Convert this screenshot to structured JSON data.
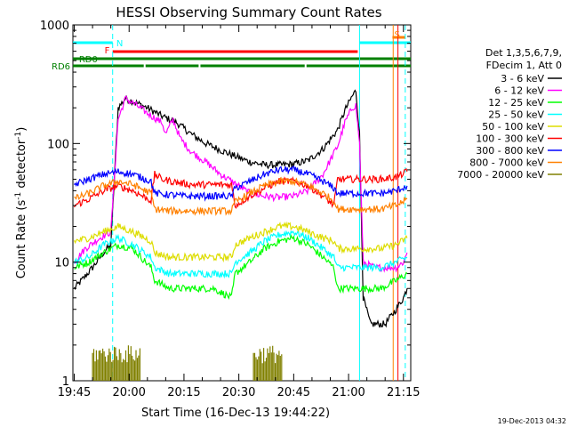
{
  "chart_data": {
    "type": "line",
    "title": "HESSI Observing Summary Count Rates",
    "ylabel": "Count Rate (s",
    "ylabel_sup": "-1",
    "ylabel_rest": " detector",
    "ylabel_sup2": "-1",
    "ylabel_end": ")",
    "xlabel": "Start Time (16-Dec-13 19:44:22)",
    "yscale": "log",
    "ylim": [
      1,
      1000
    ],
    "xlim_minutes": [
      -0.37,
      92.0
    ],
    "xticks": [
      {
        "label": "19:45",
        "m": 0
      },
      {
        "label": "20:00",
        "m": 15
      },
      {
        "label": "20:15",
        "m": 30
      },
      {
        "label": "20:30",
        "m": 45
      },
      {
        "label": "20:45",
        "m": 60
      },
      {
        "label": "21:00",
        "m": 75
      },
      {
        "label": "21:15",
        "m": 90
      }
    ],
    "yticks": [
      {
        "label": "1",
        "v": 1
      },
      {
        "label": "10",
        "v": 10
      },
      {
        "label": "100",
        "v": 100
      },
      {
        "label": "1000",
        "v": 1000
      }
    ],
    "legend": {
      "header": [
        "Det 1,3,5,6,7,9,",
        "FDecim 1, Att 0"
      ],
      "placement": "right"
    },
    "series": [
      {
        "name": "3 - 6 keV",
        "color": "#000000",
        "points": [
          [
            0,
            6
          ],
          [
            2,
            7
          ],
          [
            5,
            9
          ],
          [
            8,
            12
          ],
          [
            10,
            14
          ],
          [
            12,
            200
          ],
          [
            14,
            240
          ],
          [
            17,
            220
          ],
          [
            20,
            200
          ],
          [
            24,
            170
          ],
          [
            28,
            150
          ],
          [
            32,
            120
          ],
          [
            36,
            100
          ],
          [
            40,
            88
          ],
          [
            44,
            78
          ],
          [
            48,
            70
          ],
          [
            52,
            66
          ],
          [
            56,
            66
          ],
          [
            60,
            67
          ],
          [
            64,
            72
          ],
          [
            68,
            90
          ],
          [
            72,
            130
          ],
          [
            74,
            190
          ],
          [
            76,
            250
          ],
          [
            77,
            280
          ],
          [
            78,
            120
          ],
          [
            79,
            5
          ],
          [
            81,
            3
          ],
          [
            83,
            3
          ],
          [
            85,
            3
          ],
          [
            88,
            4
          ],
          [
            90,
            5
          ],
          [
            91,
            6
          ]
        ]
      },
      {
        "name": "6 - 12 keV",
        "color": "#ff00ff",
        "points": [
          [
            0,
            10
          ],
          [
            3,
            13
          ],
          [
            7,
            16
          ],
          [
            10,
            18
          ],
          [
            12,
            160
          ],
          [
            14,
            240
          ],
          [
            17,
            210
          ],
          [
            20,
            180
          ],
          [
            24,
            150
          ],
          [
            25,
            120
          ],
          [
            27,
            160
          ],
          [
            29,
            110
          ],
          [
            32,
            85
          ],
          [
            36,
            70
          ],
          [
            40,
            55
          ],
          [
            44,
            46
          ],
          [
            48,
            38
          ],
          [
            52,
            36
          ],
          [
            56,
            35
          ],
          [
            60,
            36
          ],
          [
            64,
            40
          ],
          [
            68,
            55
          ],
          [
            72,
            95
          ],
          [
            74,
            150
          ],
          [
            76,
            200
          ],
          [
            77,
            210
          ],
          [
            78,
            100
          ],
          [
            79,
            10
          ],
          [
            82,
            9
          ],
          [
            85,
            9
          ],
          [
            88,
            9
          ],
          [
            90,
            10
          ],
          [
            91,
            12
          ]
        ]
      },
      {
        "name": "12 - 25 keV",
        "color": "#00ff00",
        "points": [
          [
            0,
            9
          ],
          [
            4,
            10
          ],
          [
            8,
            12
          ],
          [
            12,
            14
          ],
          [
            16,
            13
          ],
          [
            21,
            9
          ],
          [
            22,
            7
          ],
          [
            26,
            6
          ],
          [
            30,
            6
          ],
          [
            34,
            6
          ],
          [
            38,
            6
          ],
          [
            43,
            5
          ],
          [
            44,
            8
          ],
          [
            48,
            10
          ],
          [
            52,
            13
          ],
          [
            56,
            15
          ],
          [
            60,
            16
          ],
          [
            64,
            14
          ],
          [
            68,
            11
          ],
          [
            71,
            9
          ],
          [
            72,
            6
          ],
          [
            76,
            6
          ],
          [
            80,
            6
          ],
          [
            84,
            6
          ],
          [
            88,
            7
          ],
          [
            91,
            8
          ]
        ]
      },
      {
        "name": "25 - 50 keV",
        "color": "#00ffff",
        "points": [
          [
            0,
            10
          ],
          [
            4,
            11
          ],
          [
            8,
            14
          ],
          [
            12,
            16
          ],
          [
            16,
            14
          ],
          [
            21,
            11
          ],
          [
            22,
            9
          ],
          [
            26,
            8
          ],
          [
            30,
            8
          ],
          [
            34,
            8
          ],
          [
            38,
            8
          ],
          [
            43,
            8
          ],
          [
            44,
            10
          ],
          [
            48,
            12
          ],
          [
            52,
            15
          ],
          [
            56,
            17
          ],
          [
            60,
            18
          ],
          [
            64,
            16
          ],
          [
            68,
            13
          ],
          [
            71,
            11
          ],
          [
            72,
            9
          ],
          [
            76,
            9
          ],
          [
            80,
            9
          ],
          [
            84,
            9
          ],
          [
            88,
            10
          ],
          [
            91,
            11
          ]
        ]
      },
      {
        "name": "50 - 100 keV",
        "color": "#dddd00",
        "points": [
          [
            0,
            15
          ],
          [
            4,
            16
          ],
          [
            8,
            18
          ],
          [
            12,
            20
          ],
          [
            16,
            18
          ],
          [
            21,
            15
          ],
          [
            22,
            12
          ],
          [
            26,
            11
          ],
          [
            30,
            11
          ],
          [
            34,
            11
          ],
          [
            38,
            11
          ],
          [
            43,
            11
          ],
          [
            44,
            14
          ],
          [
            48,
            16
          ],
          [
            52,
            18
          ],
          [
            56,
            20
          ],
          [
            60,
            20
          ],
          [
            64,
            18
          ],
          [
            68,
            16
          ],
          [
            71,
            15
          ],
          [
            72,
            13
          ],
          [
            76,
            13
          ],
          [
            80,
            13
          ],
          [
            84,
            13
          ],
          [
            88,
            14
          ],
          [
            91,
            16
          ]
        ]
      },
      {
        "name": "100 - 300 keV",
        "color": "#ff0000",
        "points": [
          [
            0,
            30
          ],
          [
            4,
            34
          ],
          [
            8,
            40
          ],
          [
            12,
            44
          ],
          [
            16,
            40
          ],
          [
            21,
            33
          ],
          [
            22,
            55
          ],
          [
            24,
            50
          ],
          [
            28,
            47
          ],
          [
            32,
            45
          ],
          [
            36,
            45
          ],
          [
            43,
            45
          ],
          [
            44,
            30
          ],
          [
            48,
            36
          ],
          [
            52,
            42
          ],
          [
            56,
            48
          ],
          [
            60,
            48
          ],
          [
            64,
            44
          ],
          [
            68,
            36
          ],
          [
            71,
            30
          ],
          [
            72,
            50
          ],
          [
            76,
            50
          ],
          [
            80,
            50
          ],
          [
            84,
            50
          ],
          [
            88,
            52
          ],
          [
            91,
            58
          ]
        ]
      },
      {
        "name": "300 - 800 keV",
        "color": "#0000ff",
        "points": [
          [
            0,
            45
          ],
          [
            4,
            50
          ],
          [
            8,
            55
          ],
          [
            12,
            58
          ],
          [
            16,
            55
          ],
          [
            21,
            48
          ],
          [
            22,
            38
          ],
          [
            26,
            37
          ],
          [
            30,
            36
          ],
          [
            34,
            36
          ],
          [
            38,
            36
          ],
          [
            43,
            36
          ],
          [
            44,
            42
          ],
          [
            48,
            48
          ],
          [
            52,
            55
          ],
          [
            56,
            60
          ],
          [
            60,
            60
          ],
          [
            64,
            55
          ],
          [
            68,
            48
          ],
          [
            71,
            42
          ],
          [
            72,
            38
          ],
          [
            76,
            38
          ],
          [
            80,
            38
          ],
          [
            84,
            38
          ],
          [
            88,
            40
          ],
          [
            91,
            44
          ]
        ]
      },
      {
        "name": "800 - 7000 keV",
        "color": "#ff8000",
        "points": [
          [
            0,
            34
          ],
          [
            4,
            38
          ],
          [
            8,
            44
          ],
          [
            12,
            48
          ],
          [
            16,
            45
          ],
          [
            21,
            38
          ],
          [
            22,
            28
          ],
          [
            26,
            27
          ],
          [
            30,
            27
          ],
          [
            34,
            27
          ],
          [
            38,
            27
          ],
          [
            43,
            27
          ],
          [
            44,
            32
          ],
          [
            48,
            38
          ],
          [
            52,
            44
          ],
          [
            56,
            48
          ],
          [
            60,
            48
          ],
          [
            64,
            44
          ],
          [
            68,
            38
          ],
          [
            71,
            33
          ],
          [
            72,
            28
          ],
          [
            76,
            28
          ],
          [
            80,
            28
          ],
          [
            84,
            28
          ],
          [
            88,
            30
          ],
          [
            91,
            34
          ]
        ]
      },
      {
        "name": "7000 - 20000 keV",
        "color": "#808000",
        "points": [
          [
            5,
            1
          ],
          [
            5,
            2
          ],
          [
            18,
            2
          ],
          [
            18,
            1
          ]
        ]
      }
    ],
    "annotations": [
      {
        "label": "N",
        "color": "#00ffff"
      },
      {
        "label": "F",
        "color": "#ff0000"
      },
      {
        "label": "RD0",
        "color": "#008000"
      },
      {
        "label": "RD6",
        "color": "#008000"
      },
      {
        "label": "S",
        "color": "#ff8000"
      }
    ],
    "flag_segments": {
      "N": [
        [
          -0.37,
          10.5
        ],
        [
          78,
          92
        ]
      ],
      "F": [
        [
          10.5,
          77.5
        ]
      ],
      "S": [
        [
          87,
          90.5
        ]
      ],
      "RD0": [
        [
          -0.37,
          92
        ]
      ],
      "RD6": [
        [
          -0.37,
          19
        ],
        [
          19.5,
          34
        ],
        [
          34.5,
          63
        ],
        [
          63.5,
          92
        ]
      ]
    },
    "vlines": [
      {
        "m": 10.5,
        "color": "#00ffff",
        "dash": true
      },
      {
        "m": 78,
        "color": "#00ffff",
        "dash": false
      },
      {
        "m": 87.2,
        "color": "#ff8000",
        "dash": false
      },
      {
        "m": 88.5,
        "color": "#ff0000",
        "dash": false
      },
      {
        "m": 90.5,
        "color": "#00ffff",
        "dash": true
      }
    ]
  },
  "footer": {
    "timestamp": "19-Dec-2013 04:32"
  }
}
